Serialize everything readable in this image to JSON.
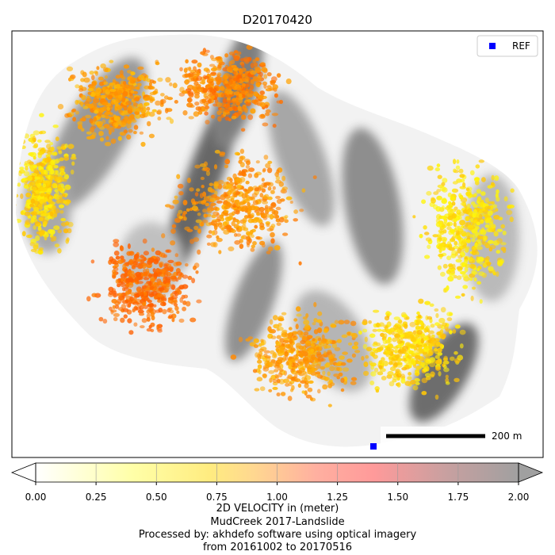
{
  "chart_data": {
    "type": "scatter",
    "title": "D20170420",
    "legend": {
      "entries": [
        "REF"
      ],
      "placement": "top-right",
      "marker_color": "#0000ff"
    },
    "reference_point": {
      "label": "REF",
      "color": "#0000ff"
    },
    "scale_bar": {
      "label": "200 m"
    },
    "colorbar": {
      "ticks": [
        "0.00",
        "0.25",
        "0.50",
        "0.75",
        "1.00",
        "1.25",
        "1.50",
        "1.75",
        "2.00"
      ],
      "range": [
        0,
        2
      ],
      "extend": "both",
      "colors": [
        "#ffffff",
        "#ffffa0",
        "#ffe680",
        "#ffc890",
        "#ffa0a0",
        "#ff9898",
        "#e0a0a0",
        "#c0a0a0",
        "#a0a0a0"
      ]
    },
    "velocity_regions": [
      {
        "region": "west edge",
        "value": 0.55
      },
      {
        "region": "northwest upper",
        "value": 0.85
      },
      {
        "region": "north central",
        "value": 1.0
      },
      {
        "region": "center",
        "value": 0.9
      },
      {
        "region": "southwest lobe",
        "value": 1.15
      },
      {
        "region": "south central",
        "value": 0.85
      },
      {
        "region": "east",
        "value": 0.5
      },
      {
        "region": "southeast",
        "value": 0.55
      }
    ],
    "xlabel": "2D VELOCITY in (meter)",
    "caption_lines": [
      "MudCreek 2017-Landslide",
      "Processed by: akhdefo software using optical imagery",
      "from 20161002 to 20170516"
    ]
  }
}
